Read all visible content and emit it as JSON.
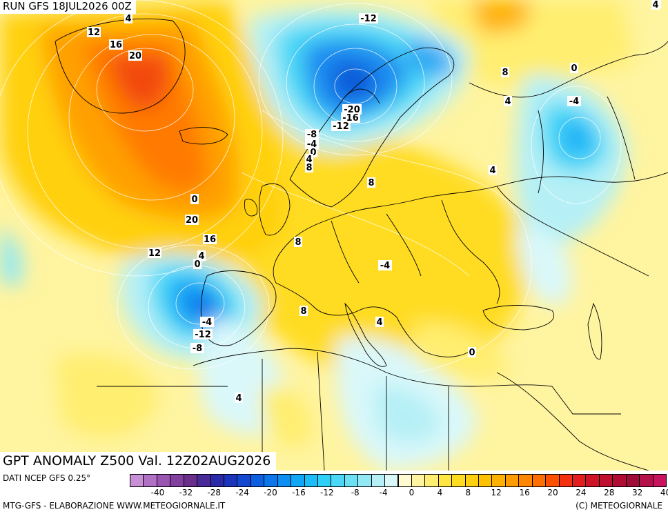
{
  "header": {
    "run_label": "RUN GFS 18JUL2026 00Z",
    "title": "GPT ANOMALY Z500 Val. 12Z02AUG2026",
    "data_source": "DATI NCEP GFS 0.25°"
  },
  "footer": {
    "left": "MTG-GFS - ELABORAZIONE WWW.METEOGIORNALE.IT",
    "right": "(C) METEOGIORNALE"
  },
  "colors": {
    "land_border": "#000000",
    "contour_line": "#ffffff"
  },
  "legend": {
    "ticks": [
      "-40",
      "-32",
      "-28",
      "-24",
      "-20",
      "-16",
      "-12",
      "-8",
      "-4",
      "0",
      "4",
      "8",
      "12",
      "16",
      "20",
      "24",
      "28",
      "32",
      "40"
    ],
    "swatches": [
      {
        "value": -40,
        "color": "#c88fd6"
      },
      {
        "value": -38,
        "color": "#b070c4"
      },
      {
        "value": -36,
        "color": "#9a55b2"
      },
      {
        "value": -34,
        "color": "#82409e"
      },
      {
        "value": -32,
        "color": "#6a2e8c"
      },
      {
        "value": -30,
        "color": "#4a2a96"
      },
      {
        "value": -28,
        "color": "#2a2aa8"
      },
      {
        "value": -26,
        "color": "#1c34bc"
      },
      {
        "value": -24,
        "color": "#1448d0"
      },
      {
        "value": -22,
        "color": "#0e5ee0"
      },
      {
        "value": -20,
        "color": "#0c76ea"
      },
      {
        "value": -18,
        "color": "#0c8ef2"
      },
      {
        "value": -16,
        "color": "#12a6f6"
      },
      {
        "value": -14,
        "color": "#1cbcf8"
      },
      {
        "value": -12,
        "color": "#2ed0f8"
      },
      {
        "value": -10,
        "color": "#4ad8f6"
      },
      {
        "value": -8,
        "color": "#6ce0f4"
      },
      {
        "value": -6,
        "color": "#92e8f4"
      },
      {
        "value": -4,
        "color": "#b6f0f6"
      },
      {
        "value": -2,
        "color": "#daf8fa"
      },
      {
        "value": 0,
        "color": "#fffad0"
      },
      {
        "value": 2,
        "color": "#fff4a0"
      },
      {
        "value": 4,
        "color": "#ffee70"
      },
      {
        "value": 6,
        "color": "#ffe640"
      },
      {
        "value": 8,
        "color": "#ffdc20"
      },
      {
        "value": 10,
        "color": "#ffd010"
      },
      {
        "value": 12,
        "color": "#ffc000"
      },
      {
        "value": 14,
        "color": "#ffb000"
      },
      {
        "value": 16,
        "color": "#ff9c00"
      },
      {
        "value": 18,
        "color": "#ff8600"
      },
      {
        "value": 20,
        "color": "#ff6e00"
      },
      {
        "value": 22,
        "color": "#ff5000"
      },
      {
        "value": 24,
        "color": "#f43010"
      },
      {
        "value": 26,
        "color": "#e41e1e"
      },
      {
        "value": 28,
        "color": "#d01428"
      },
      {
        "value": 30,
        "color": "#c01030"
      },
      {
        "value": 32,
        "color": "#b00c34"
      },
      {
        "value": 34,
        "color": "#a00c38"
      },
      {
        "value": 36,
        "color": "#b4104a"
      },
      {
        "value": 40,
        "color": "#c8145e"
      }
    ]
  },
  "contour_labels": [
    "4",
    "12",
    "16",
    "20",
    "-12",
    "-20",
    "-16",
    "-12",
    "-8",
    "-4",
    "0",
    "4",
    "8",
    "8",
    "8",
    "4",
    "0",
    "-4",
    "4",
    "0",
    "20",
    "16",
    "8",
    "12",
    "4",
    "0",
    "-4",
    "-12",
    "-8",
    "-4",
    "8",
    "4",
    "0",
    "4",
    "0",
    "4"
  ]
}
